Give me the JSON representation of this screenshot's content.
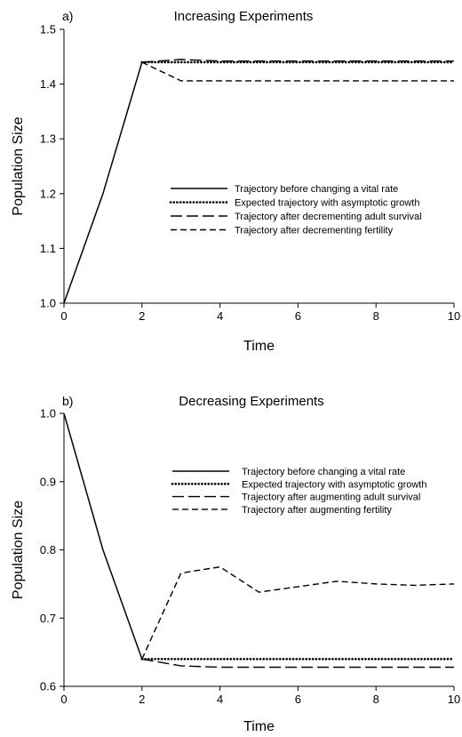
{
  "chart_data": [
    {
      "type": "line",
      "panel_label": "a)",
      "title": "Increasing Experiments",
      "xlabel": "Time",
      "ylabel": "Population Size",
      "xlim": [
        0,
        10
      ],
      "ylim": [
        1.0,
        1.5
      ],
      "xticks": [
        "0",
        "2",
        "4",
        "6",
        "8",
        "10"
      ],
      "yticks": [
        "1.0",
        "1.1",
        "1.2",
        "1.3",
        "1.4",
        "1.5"
      ],
      "legend_position": "center-right",
      "series": [
        {
          "name": "Trajectory before changing a vital rate",
          "dash": "solid",
          "points": [
            [
              0,
              1.0
            ],
            [
              1,
              1.2
            ],
            [
              2,
              1.44
            ]
          ]
        },
        {
          "name": "Expected trajectory with asymptotic growth",
          "dash": "dotted",
          "points": [
            [
              2,
              1.44
            ],
            [
              3,
              1.44
            ],
            [
              4,
              1.44
            ],
            [
              5,
              1.44
            ],
            [
              6,
              1.44
            ],
            [
              7,
              1.44
            ],
            [
              8,
              1.44
            ],
            [
              9,
              1.44
            ],
            [
              10,
              1.44
            ]
          ]
        },
        {
          "name": "Trajectory after decrementing adult survival",
          "dash": "longdash",
          "points": [
            [
              2,
              1.44
            ],
            [
              3,
              1.445
            ],
            [
              4,
              1.442
            ],
            [
              5,
              1.442
            ],
            [
              6,
              1.442
            ],
            [
              7,
              1.442
            ],
            [
              8,
              1.442
            ],
            [
              9,
              1.442
            ],
            [
              10,
              1.442
            ]
          ]
        },
        {
          "name": "Trajectory after decrementing fertility",
          "dash": "shortdash",
          "points": [
            [
              2,
              1.44
            ],
            [
              3,
              1.406
            ],
            [
              4,
              1.406
            ],
            [
              5,
              1.406
            ],
            [
              6,
              1.406
            ],
            [
              7,
              1.406
            ],
            [
              8,
              1.406
            ],
            [
              9,
              1.406
            ],
            [
              10,
              1.406
            ]
          ]
        }
      ]
    },
    {
      "type": "line",
      "panel_label": "b)",
      "title": "Decreasing Experiments",
      "xlabel": "Time",
      "ylabel": "Population Size",
      "xlim": [
        0,
        10
      ],
      "ylim": [
        0.6,
        1.0
      ],
      "xticks": [
        "0",
        "2",
        "4",
        "6",
        "8",
        "10"
      ],
      "yticks": [
        "0.6",
        "0.7",
        "0.8",
        "0.9",
        "1.0"
      ],
      "legend_position": "upper-right",
      "series": [
        {
          "name": "Trajectory before changing a vital rate",
          "dash": "solid",
          "points": [
            [
              0,
              1.0
            ],
            [
              1,
              0.8
            ],
            [
              2,
              0.64
            ]
          ]
        },
        {
          "name": "Expected trajectory with asymptotic growth",
          "dash": "dotted",
          "points": [
            [
              2,
              0.64
            ],
            [
              3,
              0.64
            ],
            [
              4,
              0.64
            ],
            [
              5,
              0.64
            ],
            [
              6,
              0.64
            ],
            [
              7,
              0.64
            ],
            [
              8,
              0.64
            ],
            [
              9,
              0.64
            ],
            [
              10,
              0.64
            ]
          ]
        },
        {
          "name": "Trajectory after augmenting adult survival",
          "dash": "longdash",
          "points": [
            [
              2,
              0.64
            ],
            [
              3,
              0.63
            ],
            [
              4,
              0.628
            ],
            [
              5,
              0.628
            ],
            [
              6,
              0.628
            ],
            [
              7,
              0.628
            ],
            [
              8,
              0.628
            ],
            [
              9,
              0.628
            ],
            [
              10,
              0.628
            ]
          ]
        },
        {
          "name": "Trajectory after augmenting fertility",
          "dash": "shortdash",
          "points": [
            [
              2,
              0.64
            ],
            [
              3,
              0.766
            ],
            [
              4,
              0.775
            ],
            [
              5,
              0.738
            ],
            [
              6,
              0.746
            ],
            [
              7,
              0.754
            ],
            [
              8,
              0.75
            ],
            [
              9,
              0.748
            ],
            [
              10,
              0.75
            ]
          ]
        }
      ]
    }
  ]
}
